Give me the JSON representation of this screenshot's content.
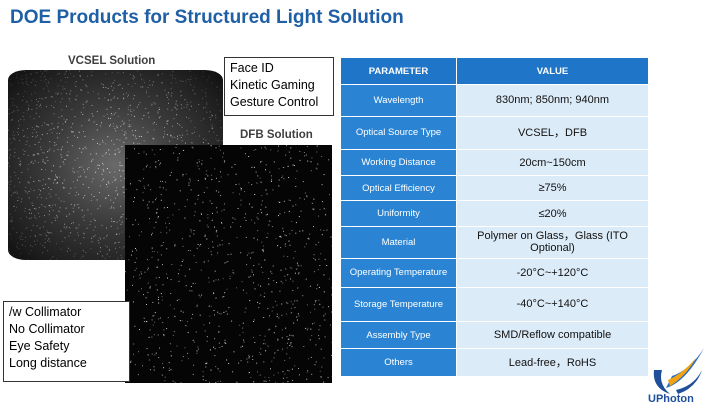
{
  "title": "DOE Products for Structured Light Solution",
  "vcsel_caption": "VCSEL Solution",
  "dfb_caption": "DFB Solution",
  "applications": [
    "Face ID",
    "Kinetic Gaming",
    "Gesture Control"
  ],
  "features": [
    "/w Collimator",
    "No Collimator",
    "Eye Safety",
    "Long distance"
  ],
  "table": {
    "header_parameter": "PARAMETER",
    "header_value": "VALUE",
    "rows": [
      {
        "param": "Wavelength",
        "value": "830nm; 850nm; 940nm"
      },
      {
        "param": "Optical Source Type",
        "value": "VCSEL，DFB"
      },
      {
        "param": "Working Distance",
        "value": "20cm~150cm"
      },
      {
        "param": "Optical Efficiency",
        "value": "≥75%"
      },
      {
        "param": "Uniformity",
        "value": "≤20%"
      },
      {
        "param": "Material",
        "value": "Polymer on Glass，Glass (ITO Optional)"
      },
      {
        "param": "Operating Temperature",
        "value": "-20°C~+120°C"
      },
      {
        "param": "Storage Temperature",
        "value": "-40°C~+140°C"
      },
      {
        "param": "Assembly Type",
        "value": "SMD/Reflow compatible"
      },
      {
        "param": "Others",
        "value": "Lead-free，RoHS"
      }
    ]
  },
  "logo_text": "UPhoton",
  "colors": {
    "title": "#1f5fa6",
    "header": "#1f76c9",
    "param_cell": "#2a84d3",
    "value_cell": "#dcebf8"
  }
}
